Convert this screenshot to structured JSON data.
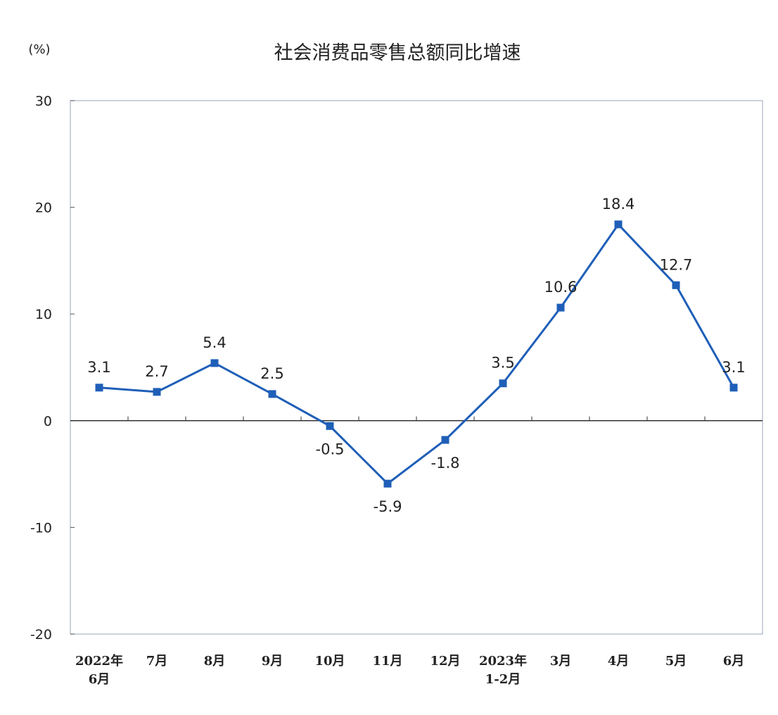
{
  "chart_data": {
    "type": "line",
    "title": "社会消费品零售总额同比增速",
    "y_label": "(%)",
    "categories": [
      "2022年\n6月",
      "7月",
      "8月",
      "9月",
      "10月",
      "11月",
      "12月",
      "2023年\n1-2月",
      "3月",
      "4月",
      "5月",
      "6月"
    ],
    "series": [
      {
        "name": "社会消费品零售总额同比增速",
        "color": "#1f5fb8",
        "values": [
          3.1,
          2.7,
          5.4,
          2.5,
          -0.5,
          -5.9,
          -1.8,
          3.5,
          10.6,
          18.4,
          12.7,
          3.1
        ]
      }
    ],
    "ylim": [
      -20,
      30
    ],
    "yticks": [
      -20,
      -10,
      0,
      10,
      20,
      30
    ]
  }
}
